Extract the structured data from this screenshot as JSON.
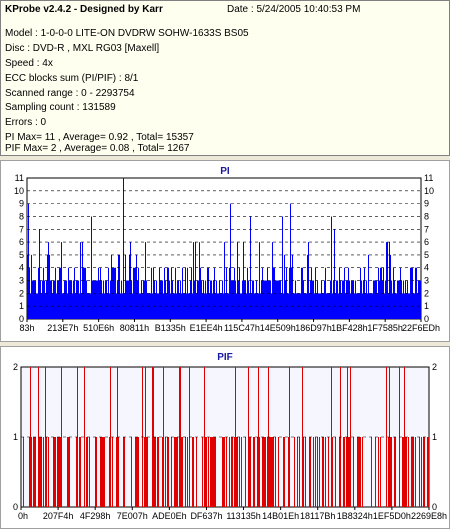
{
  "info": {
    "title": "KProbe v2.4.2 - Designed by Karr",
    "date": "Date : 5/24/2005 10:40:53 PM",
    "lines": [
      "Model : 1-0-0-0 LITE-ON DVDRW SOHW-1633S BS05",
      "Disc : DVD-R , MXL RG03 [Maxell]",
      "Speed : 4x",
      "ECC blocks sum (PI/PIF) : 8/1",
      "Scanned range : 0 - 2293754",
      "Sampling count : 131589",
      "Errors : 0",
      "PI Max= 11 , Average= 0.92 , Total= 15357",
      "PIF Max= 2 , Average= 0.08 , Total= 1267"
    ]
  },
  "chart_data": [
    {
      "type": "bar",
      "title": "PI",
      "color": "#0000ff",
      "ylim": [
        0,
        11
      ],
      "yticks": [
        "0",
        "1",
        "2",
        "3",
        "4",
        "5",
        "6",
        "7",
        "8",
        "9",
        "10",
        "11"
      ],
      "xticks": [
        "83h",
        "213E7h",
        "510E6h",
        "80811h",
        "B1335h",
        "E1EE4h",
        "115C47h",
        "14E509h",
        "186D97h",
        "1BF428h",
        "1F7585h",
        "22F6EDh"
      ],
      "grid": "dashed",
      "note_series": "dense PI error counts; baseline ~3-4 with frequent spikes"
    },
    {
      "type": "bar",
      "title": "PIF",
      "color": "#e00000",
      "ylim": [
        0,
        2
      ],
      "yticks": [
        "0",
        "1",
        "2"
      ],
      "xticks": [
        "0h",
        "207F4h",
        "4F298h",
        "7E007h",
        "ADE0Eh",
        "DF637h",
        "113135h",
        "14B01Eh",
        "18117Bh",
        "1B8324h",
        "1EF5D0h",
        "2269E8h"
      ],
      "grid": "dashed"
    }
  ]
}
